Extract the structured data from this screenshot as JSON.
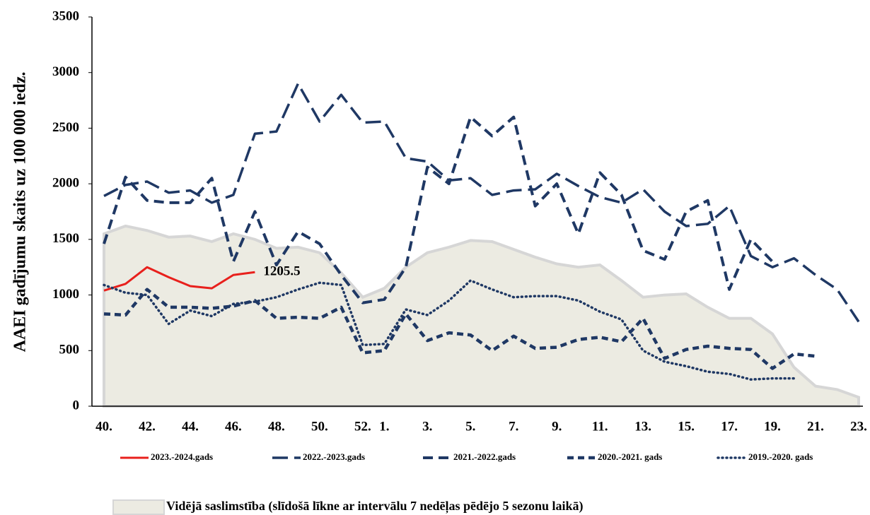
{
  "chart_data": {
    "type": "line",
    "y_label": "AAEI gadījumu skaits uz 100 000 iedz.",
    "categories": [
      "40.",
      null,
      "42.",
      null,
      "44.",
      null,
      "46.",
      null,
      "48.",
      null,
      "50.",
      null,
      "52.",
      "1.",
      null,
      "3.",
      null,
      "5.",
      null,
      "7.",
      null,
      "9.",
      null,
      "11.",
      null,
      "13.",
      null,
      "15.",
      null,
      "17.",
      null,
      "19.",
      null,
      "21.",
      null,
      "23."
    ],
    "ylim": [
      0,
      3500
    ],
    "yticks": [
      0,
      500,
      1000,
      1500,
      2000,
      2500,
      3000,
      3500
    ],
    "legend": "bottom",
    "series": [
      {
        "name": "Vidējā saslimstība (slīdošā līkne ar intervālu 7 nedēļas pēdējo 5 sezonu laikā)",
        "style": "area",
        "color": "#ecebe2",
        "values": [
          1550,
          1620,
          1580,
          1520,
          1530,
          1480,
          1550,
          1500,
          1420,
          1430,
          1380,
          1200,
          980,
          1060,
          1250,
          1380,
          1430,
          1490,
          1480,
          1410,
          1340,
          1280,
          1250,
          1270,
          1130,
          980,
          1000,
          1010,
          890,
          790,
          790,
          650,
          350,
          180,
          150,
          80
        ]
      },
      {
        "name": "2023.-2024.gads",
        "style": "solid",
        "color": "#e8201c",
        "values": [
          1040,
          1100,
          1250,
          1160,
          1080,
          1060,
          1180,
          1205.5,
          null,
          null,
          null,
          null,
          null,
          null,
          null,
          null,
          null,
          null,
          null,
          null,
          null,
          null,
          null,
          null,
          null,
          null,
          null,
          null,
          null,
          null,
          null,
          null,
          null,
          null,
          null,
          null
        ]
      },
      {
        "name": "2022.-2023.gads",
        "style": "long-dash",
        "color": "#1f3864",
        "values": [
          1890,
          1990,
          2020,
          1920,
          1940,
          1830,
          1900,
          2450,
          2470,
          2900,
          2560,
          2800,
          2550,
          2560,
          2230,
          2200,
          2030,
          2050,
          1900,
          1940,
          1950,
          2090,
          1980,
          1880,
          1830,
          1950,
          1750,
          1620,
          1640,
          1800,
          1350,
          1250,
          1330,
          1180,
          1050,
          760
        ]
      },
      {
        "name": "2021.-2022.gads",
        "style": "dash",
        "color": "#1f3864",
        "values": [
          1460,
          2060,
          1850,
          1830,
          1830,
          2050,
          1300,
          1750,
          1270,
          1570,
          1460,
          1180,
          930,
          960,
          1250,
          2150,
          2000,
          2600,
          2430,
          2600,
          1800,
          2000,
          1550,
          2100,
          1900,
          1400,
          1320,
          1750,
          1850,
          1050,
          1500,
          1300,
          null,
          null,
          null,
          null
        ]
      },
      {
        "name": "2020.-2021. gads",
        "style": "short-dash",
        "color": "#1f3864",
        "values": [
          830,
          820,
          1050,
          890,
          890,
          880,
          900,
          950,
          790,
          800,
          790,
          890,
          480,
          500,
          830,
          590,
          660,
          640,
          500,
          630,
          520,
          530,
          600,
          620,
          580,
          790,
          430,
          510,
          540,
          520,
          510,
          340,
          470,
          450,
          null,
          null
        ]
      },
      {
        "name": "2019.-2020. gads",
        "style": "dotted",
        "color": "#1f3864",
        "values": [
          1090,
          1020,
          1000,
          740,
          860,
          810,
          920,
          940,
          980,
          1050,
          1110,
          1090,
          550,
          560,
          870,
          820,
          950,
          1130,
          1050,
          980,
          990,
          990,
          950,
          850,
          780,
          500,
          400,
          360,
          310,
          290,
          240,
          250,
          250,
          null,
          null,
          null
        ]
      }
    ]
  }
}
